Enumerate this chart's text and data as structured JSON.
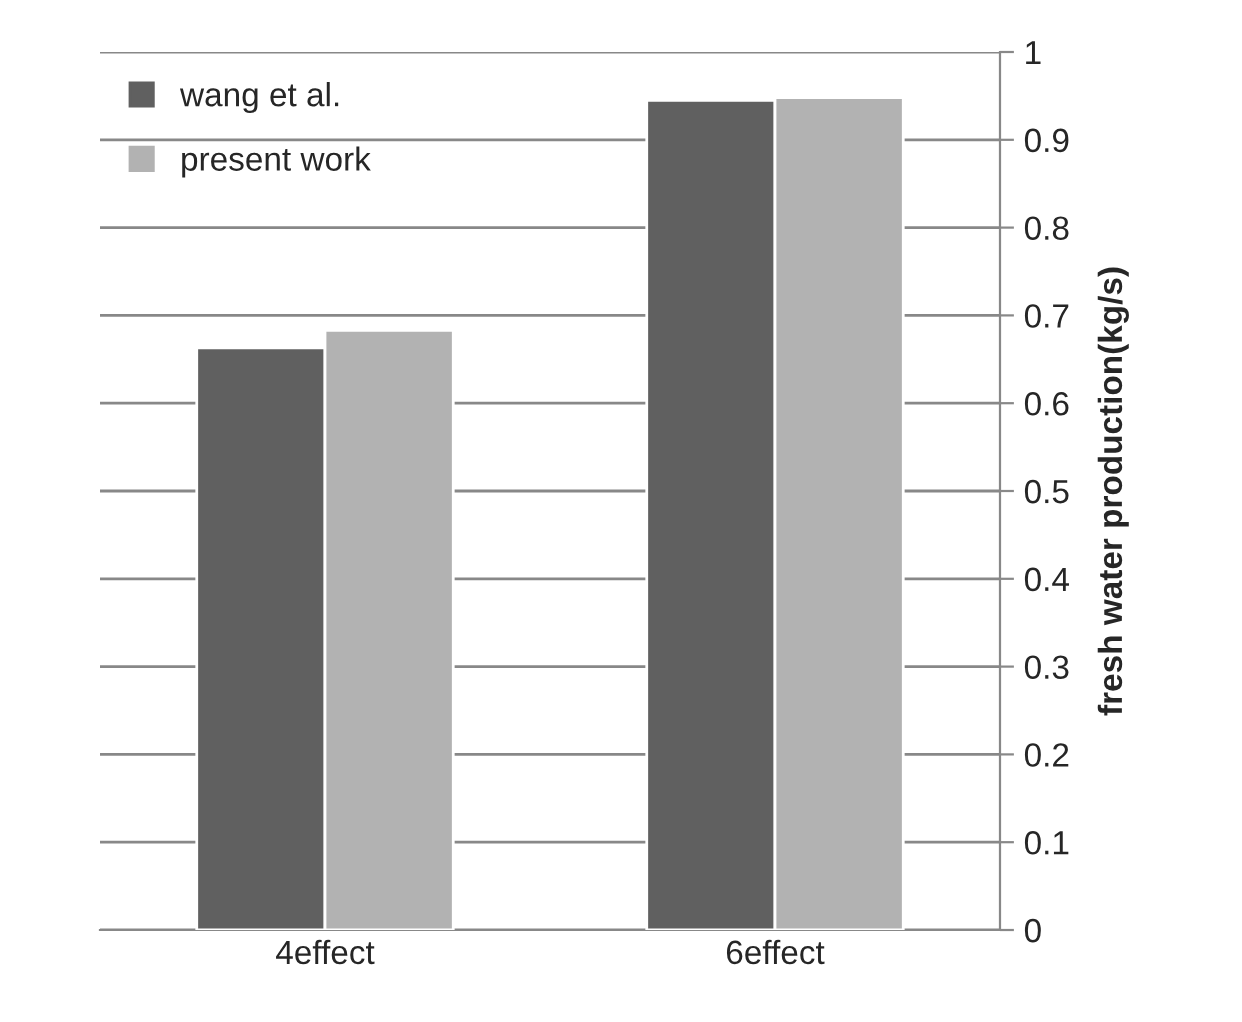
{
  "chart_data": {
    "type": "bar",
    "ylabel": "fresh water production(kg/s)",
    "categories": [
      "4effect",
      "6effect"
    ],
    "series": [
      {
        "name": "wang et al.",
        "color": "#606060",
        "values": [
          0.663,
          0.945
        ]
      },
      {
        "name": "present work",
        "color": "#b2b2b2",
        "values": [
          0.683,
          0.948
        ]
      }
    ],
    "ylim": [
      0,
      1
    ],
    "yticks": [
      0,
      0.1,
      0.2,
      0.3,
      0.4,
      0.5,
      0.6,
      0.7,
      0.8,
      0.9,
      1
    ],
    "grid": "y",
    "legend": "top left"
  }
}
